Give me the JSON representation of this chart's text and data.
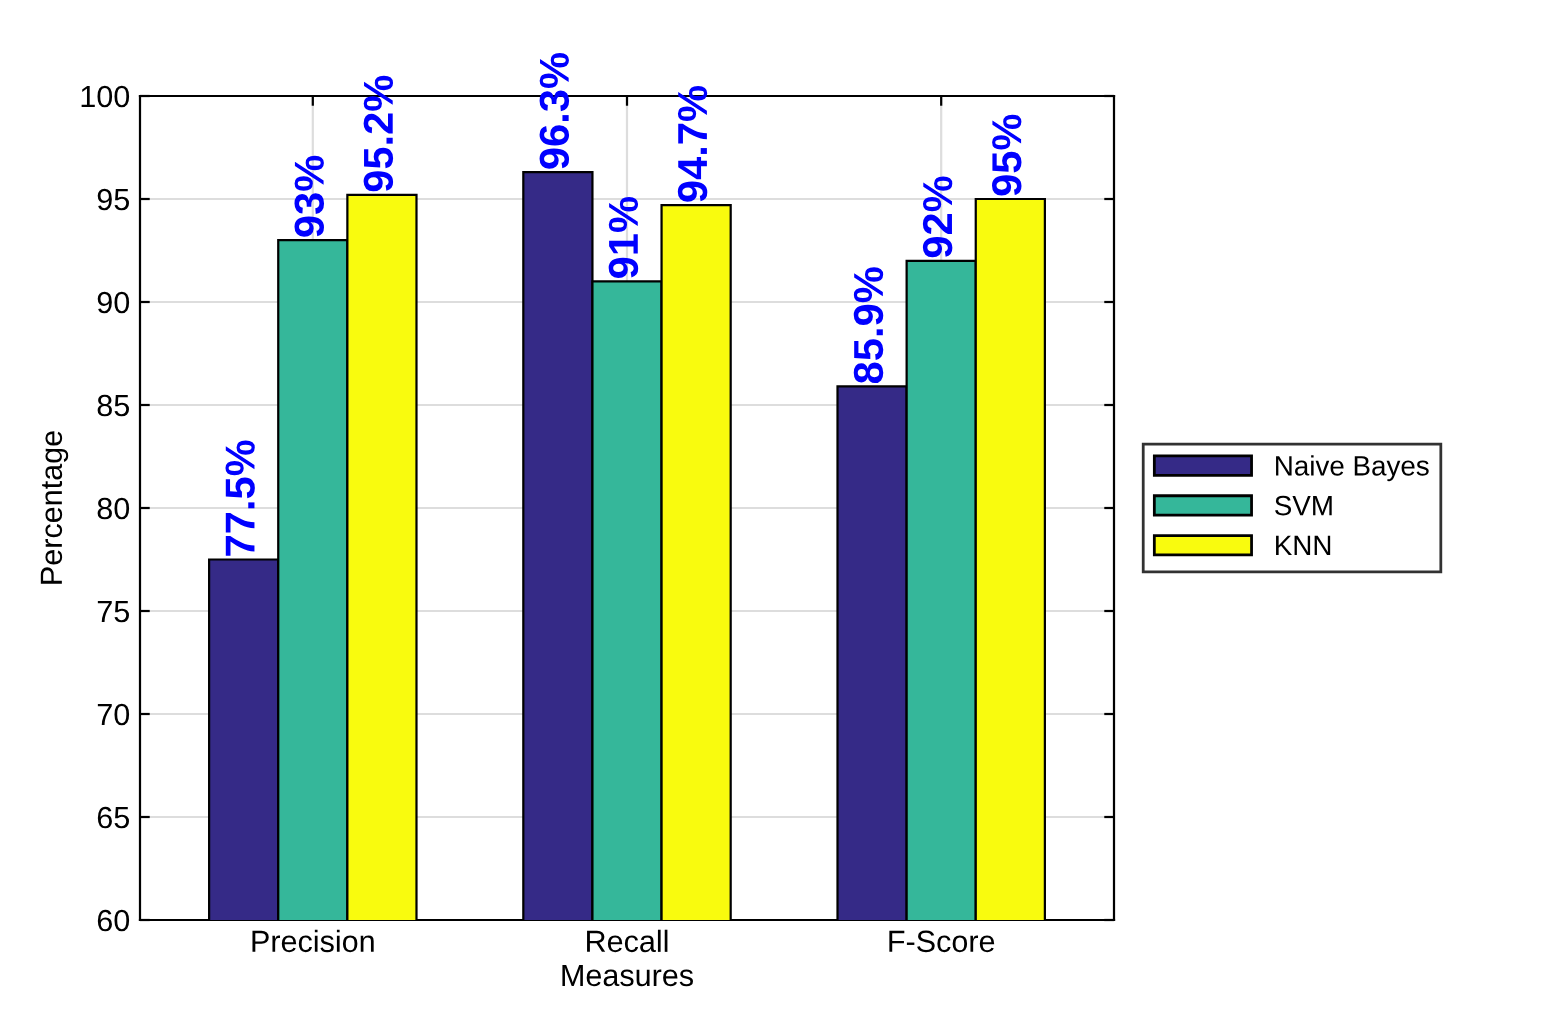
{
  "chart_data": {
    "type": "bar",
    "xlabel": "Measures",
    "ylabel": "Percentage",
    "categories": [
      "Precision",
      "Recall",
      "F-Score"
    ],
    "series": [
      {
        "name": "Naive Bayes",
        "color": "#352a87",
        "values": [
          77.5,
          96.3,
          85.9
        ],
        "value_labels": [
          "77.5%",
          "96.3%",
          "85.9%"
        ]
      },
      {
        "name": "SVM",
        "color": "#35b79a",
        "values": [
          93,
          91,
          92
        ],
        "value_labels": [
          "93%",
          "91%",
          "92%"
        ]
      },
      {
        "name": "KNN",
        "color": "#f9fb0e",
        "values": [
          95.2,
          94.7,
          95
        ],
        "value_labels": [
          "95.2%",
          "94.7%",
          "95%"
        ]
      }
    ],
    "ylim": [
      60,
      100
    ],
    "yticks": [
      60,
      65,
      70,
      75,
      80,
      85,
      90,
      95,
      100
    ],
    "grid": true,
    "legend": "right"
  }
}
